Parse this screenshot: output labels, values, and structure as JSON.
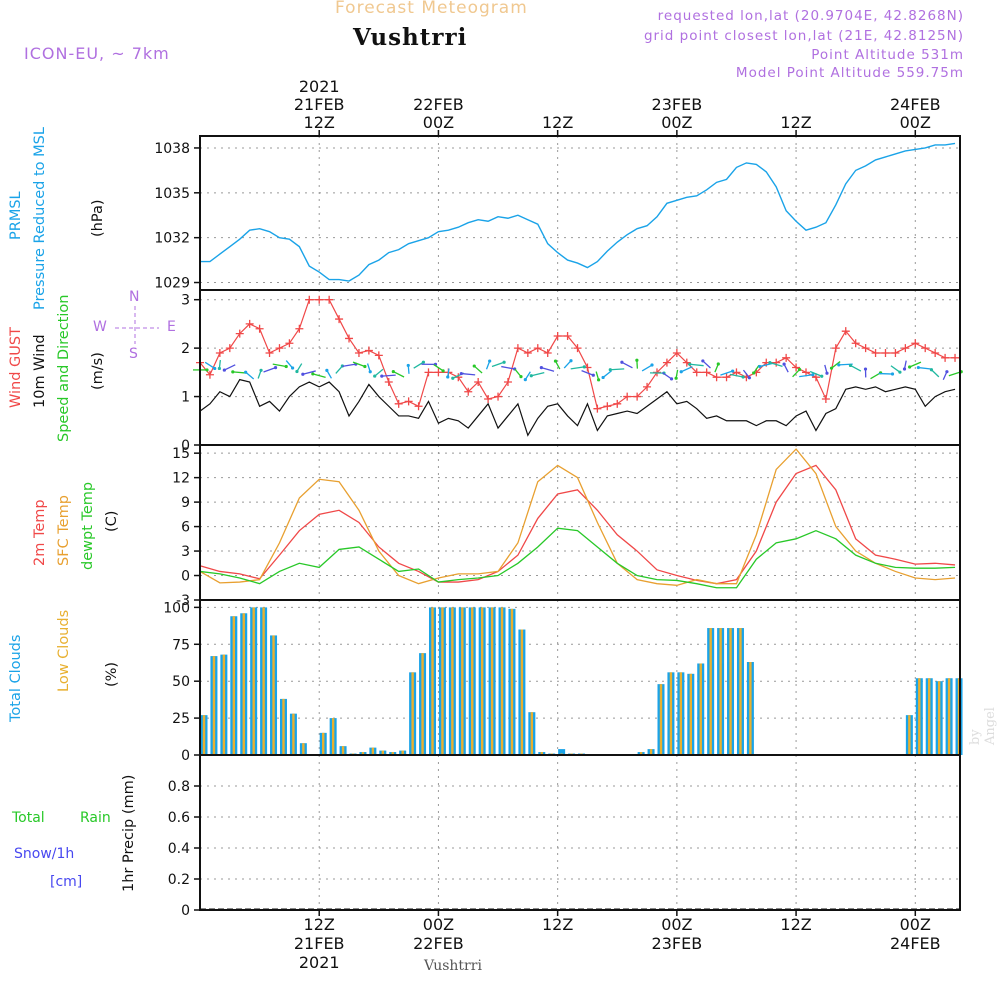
{
  "header": {
    "faint_title": "Forecast Meteogram",
    "location": "Vushtrri",
    "model": "ICON-EU, ~ 7km",
    "requested": "requested lon,lat (20.9704E, 42.8268N)",
    "grid_point": "grid point closest lon,lat (21E, 42.8125N)",
    "point_altitude": "Point Altitude 531m",
    "model_altitude": "Model Point Altitude 559.75m"
  },
  "footer": {
    "location": "Vushtrri",
    "credit": "by Angel"
  },
  "time_axis": {
    "ticks": [
      {
        "t": 12,
        "hour": "12Z",
        "date": "21FEB",
        "year": "2021"
      },
      {
        "t": 24,
        "hour": "00Z",
        "date": "22FEB",
        "year": ""
      },
      {
        "t": 36,
        "hour": "12Z",
        "date": "",
        "year": ""
      },
      {
        "t": 48,
        "hour": "00Z",
        "date": "23FEB",
        "year": ""
      },
      {
        "t": 60,
        "hour": "12Z",
        "date": "",
        "year": ""
      },
      {
        "t": 72,
        "hour": "00Z",
        "date": "24FEB",
        "year": ""
      }
    ],
    "range": [
      0,
      76.5
    ]
  },
  "labels": {
    "pressure": [
      "PRMSL",
      "Pressure Reduced to MSL",
      "(hPa)"
    ],
    "wind": [
      "Wind GUST",
      "10m Wind",
      "Speed and Direction",
      "(m/s)"
    ],
    "compass": [
      "N",
      "W",
      "E",
      "S"
    ],
    "temp": [
      "2m Temp",
      "SFC Temp",
      "dewpt Temp",
      "(C)"
    ],
    "clouds": [
      "Total Clouds",
      "Low Clouds",
      "(%)"
    ],
    "precip": [
      "Total",
      "Rain",
      "Snow/1h",
      "[cm]",
      "1hr Precip (mm)"
    ]
  },
  "colors": {
    "pressure": "#1aa3e8",
    "gust": "#f04848",
    "wind": "#111111",
    "temp": "#f04848",
    "sfc": "#e8a030",
    "dewpt": "#28c828",
    "total_clouds": "#1aa3e8",
    "low_clouds": "#e8b030",
    "rain": "#28c828",
    "snow": "#4848f0",
    "purple": "#b070e0"
  },
  "chart_data": [
    {
      "type": "line",
      "title": "PRMSL Pressure Reduced to MSL",
      "ylabel": "(hPa)",
      "ylim": [
        1028.5,
        1038.8
      ],
      "yticks": [
        1029,
        1032,
        1035,
        1038
      ],
      "series": [
        {
          "name": "PRMSL",
          "x": [
            0,
            1,
            2,
            3,
            4,
            5,
            6,
            7,
            8,
            9,
            10,
            11,
            12,
            13,
            14,
            15,
            16,
            17,
            18,
            19,
            20,
            21,
            22,
            23,
            24,
            25,
            26,
            27,
            28,
            29,
            30,
            31,
            32,
            33,
            34,
            35,
            36,
            37,
            38,
            39,
            40,
            41,
            42,
            43,
            44,
            45,
            46,
            47,
            48,
            49,
            50,
            51,
            52,
            53,
            54,
            55,
            56,
            57,
            58,
            59,
            60,
            61,
            62,
            63,
            64,
            65,
            66,
            67,
            68,
            69,
            70,
            71,
            72,
            73,
            74,
            75,
            76
          ],
          "values": [
            1030.4,
            1030.4,
            1030.9,
            1031.4,
            1031.9,
            1032.5,
            1032.6,
            1032.4,
            1032.0,
            1031.9,
            1031.4,
            1030.1,
            1029.7,
            1029.2,
            1029.2,
            1029.1,
            1029.5,
            1030.2,
            1030.5,
            1031.0,
            1031.2,
            1031.6,
            1031.8,
            1032.0,
            1032.4,
            1032.5,
            1032.7,
            1033.0,
            1033.2,
            1033.1,
            1033.4,
            1033.3,
            1033.5,
            1033.2,
            1032.9,
            1031.6,
            1031.0,
            1030.5,
            1030.3,
            1030.0,
            1030.4,
            1031.1,
            1031.7,
            1032.2,
            1032.6,
            1032.8,
            1033.4,
            1034.3,
            1034.5,
            1034.7,
            1034.8,
            1035.2,
            1035.7,
            1035.9,
            1036.7,
            1037.0,
            1036.9,
            1036.4,
            1035.4,
            1033.8,
            1033.1,
            1032.5,
            1032.7,
            1033.0,
            1034.2,
            1035.6,
            1036.5,
            1036.8,
            1037.2,
            1037.4,
            1037.6,
            1037.8,
            1037.9,
            1038.0,
            1038.2,
            1038.2,
            1038.3
          ]
        }
      ]
    },
    {
      "type": "line",
      "title": "Wind GUST / 10m Wind Speed and Direction",
      "ylabel": "(m/s)",
      "ylim": [
        0,
        3.2
      ],
      "yticks": [
        0,
        1,
        2,
        3
      ],
      "series": [
        {
          "name": "Wind GUST",
          "x": [
            0,
            1,
            2,
            3,
            4,
            5,
            6,
            7,
            8,
            9,
            10,
            11,
            12,
            13,
            14,
            15,
            16,
            17,
            18,
            19,
            20,
            21,
            22,
            23,
            24,
            25,
            26,
            27,
            28,
            29,
            30,
            31,
            32,
            33,
            34,
            35,
            36,
            37,
            38,
            39,
            40,
            41,
            42,
            43,
            44,
            45,
            46,
            47,
            48,
            49,
            50,
            51,
            52,
            53,
            54,
            55,
            56,
            57,
            58,
            59,
            60,
            61,
            62,
            63,
            64,
            65,
            66,
            67,
            68,
            69,
            70,
            71,
            72,
            73,
            74,
            75,
            76
          ],
          "values": [
            1.7,
            1.45,
            1.9,
            2.0,
            2.3,
            2.5,
            2.4,
            1.9,
            2.0,
            2.1,
            2.4,
            3.0,
            3.0,
            3.0,
            2.6,
            2.2,
            1.9,
            1.95,
            1.85,
            1.3,
            0.85,
            0.9,
            0.8,
            1.5,
            1.5,
            1.5,
            1.4,
            1.1,
            1.3,
            0.95,
            1.0,
            1.3,
            2.0,
            1.9,
            2.0,
            1.9,
            2.25,
            2.25,
            2.0,
            1.6,
            0.75,
            0.8,
            0.85,
            1.0,
            1.0,
            1.2,
            1.5,
            1.7,
            1.9,
            1.7,
            1.5,
            1.5,
            1.4,
            1.4,
            1.5,
            1.4,
            1.5,
            1.7,
            1.7,
            1.8,
            1.6,
            1.5,
            1.4,
            0.95,
            2.0,
            2.35,
            2.1,
            2.0,
            1.9,
            1.9,
            1.9,
            2.0,
            2.1,
            2.0,
            1.9,
            1.8,
            1.8
          ]
        },
        {
          "name": "10m Wind",
          "x": [
            0,
            1,
            2,
            3,
            4,
            5,
            6,
            7,
            8,
            9,
            10,
            11,
            12,
            13,
            14,
            15,
            16,
            17,
            18,
            19,
            20,
            21,
            22,
            23,
            24,
            25,
            26,
            27,
            28,
            29,
            30,
            31,
            32,
            33,
            34,
            35,
            36,
            37,
            38,
            39,
            40,
            41,
            42,
            43,
            44,
            45,
            46,
            47,
            48,
            49,
            50,
            51,
            52,
            53,
            54,
            55,
            56,
            57,
            58,
            59,
            60,
            61,
            62,
            63,
            64,
            65,
            66,
            67,
            68,
            69,
            70,
            71,
            72,
            73,
            74,
            75,
            76
          ],
          "values": [
            0.7,
            0.85,
            1.1,
            1.0,
            1.35,
            1.3,
            0.8,
            0.9,
            0.7,
            1.0,
            1.2,
            1.3,
            1.2,
            1.3,
            1.1,
            0.6,
            0.9,
            1.25,
            1.0,
            0.8,
            0.6,
            0.6,
            0.55,
            0.9,
            0.45,
            0.55,
            0.5,
            0.35,
            0.6,
            0.85,
            0.35,
            0.6,
            0.85,
            0.2,
            0.55,
            0.8,
            0.85,
            0.6,
            0.4,
            0.85,
            0.3,
            0.6,
            0.65,
            0.7,
            0.65,
            0.8,
            0.95,
            1.1,
            0.85,
            0.9,
            0.75,
            0.55,
            0.6,
            0.5,
            0.5,
            0.5,
            0.4,
            0.5,
            0.5,
            0.4,
            0.6,
            0.7,
            0.3,
            0.65,
            0.75,
            1.15,
            1.2,
            1.15,
            1.2,
            1.1,
            1.15,
            1.2,
            1.15,
            0.8,
            1.0,
            1.1,
            1.15
          ]
        }
      ]
    },
    {
      "type": "line",
      "title": "2m Temp / SFC Temp / dewpt Temp",
      "ylabel": "(C)",
      "ylim": [
        -3,
        16
      ],
      "yticks": [
        -3,
        0,
        3,
        6,
        9,
        12,
        15
      ],
      "series": [
        {
          "name": "2m Temp",
          "x": [
            0,
            2,
            4,
            6,
            8,
            10,
            12,
            14,
            16,
            18,
            20,
            22,
            24,
            26,
            28,
            30,
            32,
            34,
            36,
            38,
            40,
            42,
            44,
            46,
            48,
            50,
            52,
            54,
            56,
            58,
            60,
            62,
            64,
            66,
            68,
            70,
            72,
            74,
            76
          ],
          "values": [
            1.2,
            0.5,
            0.2,
            -0.4,
            2.5,
            5.5,
            7.5,
            8.0,
            6.5,
            3.5,
            1.5,
            0.5,
            -0.8,
            -0.8,
            -0.5,
            0.5,
            2.5,
            7.0,
            10.0,
            10.5,
            8.0,
            5.0,
            3.0,
            0.7,
            0.0,
            -0.6,
            -1.0,
            -0.5,
            3.0,
            9.0,
            12.5,
            13.5,
            10.5,
            4.5,
            2.5,
            2.0,
            1.4,
            1.5,
            1.3
          ]
        },
        {
          "name": "SFC Temp",
          "x": [
            0,
            2,
            4,
            6,
            8,
            10,
            12,
            14,
            16,
            18,
            20,
            22,
            24,
            26,
            28,
            30,
            32,
            34,
            36,
            38,
            40,
            42,
            44,
            46,
            48,
            50,
            52,
            54,
            56,
            58,
            60,
            62,
            64,
            66,
            68,
            70,
            72,
            74,
            76
          ],
          "values": [
            0.5,
            -0.9,
            -0.8,
            -0.5,
            4.0,
            9.5,
            11.8,
            11.5,
            8.0,
            3.0,
            0.0,
            -1.0,
            -0.3,
            0.2,
            0.2,
            0.5,
            4.0,
            11.5,
            13.5,
            12.0,
            6.5,
            1.5,
            -0.5,
            -1.0,
            -1.2,
            -0.5,
            -1.0,
            -1.0,
            5.0,
            13.0,
            15.5,
            12.5,
            6.0,
            3.0,
            1.5,
            0.5,
            -0.3,
            -0.5,
            -0.3
          ]
        },
        {
          "name": "dewpt Temp",
          "x": [
            0,
            2,
            4,
            6,
            8,
            10,
            12,
            14,
            16,
            18,
            20,
            22,
            24,
            26,
            28,
            30,
            32,
            34,
            36,
            38,
            40,
            42,
            44,
            46,
            48,
            50,
            52,
            54,
            56,
            58,
            60,
            62,
            64,
            66,
            68,
            70,
            72,
            74,
            76
          ],
          "values": [
            0.5,
            0.2,
            -0.3,
            -1.0,
            0.5,
            1.5,
            1.0,
            3.2,
            3.5,
            2.0,
            0.5,
            0.8,
            -0.8,
            -0.5,
            -0.3,
            0.0,
            1.5,
            3.5,
            5.8,
            5.5,
            3.5,
            1.5,
            0.0,
            -0.5,
            -0.6,
            -1.0,
            -1.5,
            -1.5,
            2.0,
            4.0,
            4.5,
            5.5,
            4.5,
            2.5,
            1.5,
            1.0,
            0.9,
            0.9,
            1.0
          ]
        }
      ]
    },
    {
      "type": "bar",
      "title": "Total Clouds / Low Clouds",
      "ylabel": "(%)",
      "ylim": [
        0,
        105
      ],
      "yticks": [
        0,
        25,
        50,
        75,
        100
      ],
      "x": [
        0,
        1,
        2,
        3,
        4,
        5,
        6,
        7,
        8,
        9,
        10,
        11,
        12,
        13,
        14,
        15,
        16,
        17,
        18,
        19,
        20,
        21,
        22,
        23,
        24,
        25,
        26,
        27,
        28,
        29,
        30,
        31,
        32,
        33,
        34,
        35,
        36,
        37,
        38,
        39,
        40,
        41,
        42,
        43,
        44,
        45,
        46,
        47,
        48,
        49,
        50,
        51,
        52,
        53,
        54,
        55,
        56,
        57,
        58,
        59,
        60,
        61,
        62,
        63,
        64,
        65,
        66,
        67,
        68,
        69,
        70,
        71,
        72,
        73,
        74,
        75,
        76
      ],
      "series": [
        {
          "name": "Total Clouds",
          "values": [
            27,
            67,
            68,
            94,
            96,
            100,
            100,
            81,
            38,
            28,
            8,
            0,
            15,
            25,
            6,
            1,
            2,
            5,
            3,
            2,
            3,
            56,
            69,
            100,
            100,
            100,
            100,
            100,
            100,
            100,
            100,
            99,
            85,
            29,
            2,
            1,
            4,
            1,
            1,
            0,
            0,
            0,
            0,
            0,
            2,
            4,
            48,
            56,
            56,
            55,
            62,
            86,
            86,
            86,
            86,
            63,
            0,
            0,
            0,
            0,
            0,
            0,
            0,
            0,
            0,
            0,
            0,
            0,
            0,
            0,
            0,
            27,
            52,
            52,
            50,
            52,
            52
          ]
        },
        {
          "name": "Low Clouds",
          "values": [
            27,
            67,
            68,
            94,
            96,
            100,
            100,
            81,
            38,
            28,
            8,
            0,
            15,
            25,
            6,
            1,
            2,
            5,
            3,
            2,
            3,
            56,
            69,
            100,
            100,
            100,
            100,
            100,
            100,
            100,
            100,
            99,
            85,
            29,
            2,
            1,
            1,
            1,
            1,
            0,
            0,
            0,
            0,
            0,
            2,
            4,
            48,
            56,
            56,
            55,
            62,
            86,
            86,
            86,
            86,
            63,
            0,
            0,
            0,
            0,
            0,
            0,
            0,
            0,
            0,
            0,
            0,
            0,
            0,
            0,
            0,
            27,
            52,
            52,
            50,
            52,
            52
          ]
        }
      ]
    },
    {
      "type": "bar",
      "title": "1hr Precip",
      "ylabel": "1hr Precip (mm)",
      "ylim": [
        0,
        1.0
      ],
      "yticks": [
        0,
        0.2,
        0.4,
        0.6,
        0.8
      ],
      "series": [
        {
          "name": "Total Rain",
          "values": [
            0
          ]
        },
        {
          "name": "Snow/1h",
          "values": [
            0
          ]
        }
      ]
    }
  ]
}
